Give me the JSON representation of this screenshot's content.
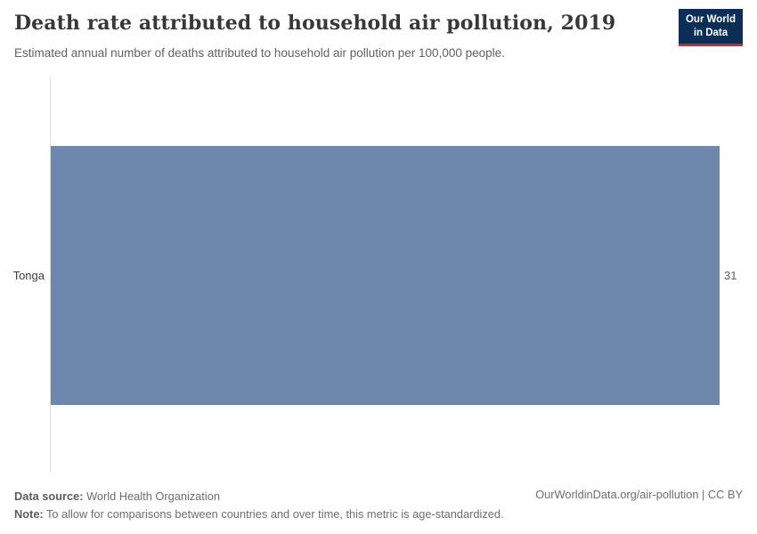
{
  "header": {
    "title": "Death rate attributed to household air pollution, 2019",
    "subtitle": "Estimated annual number of deaths attributed to household air pollution per 100,000 people.",
    "logo": {
      "line1": "Our World",
      "line2": "in Data",
      "bg_color": "#0a2e55",
      "accent_color": "#cc2a25"
    }
  },
  "chart_data": {
    "type": "bar",
    "orientation": "horizontal",
    "title": "Death rate attributed to household air pollution, 2019",
    "subtitle": "Estimated annual number of deaths attributed to household air pollution per 100,000 people.",
    "categories": [
      "Tonga"
    ],
    "values": [
      31
    ],
    "value_labels": [
      "31"
    ],
    "xlim": [
      0,
      31
    ],
    "bar_color": "#6d87ad",
    "axis_line_color": "#dcdcdc",
    "grid": false,
    "legend": false
  },
  "footer": {
    "data_source_label": "Data source:",
    "data_source_value": " World Health Organization",
    "note_label": "Note:",
    "note_value": " To allow for comparisons between countries and over time, this metric is age-standardized.",
    "attribution": "OurWorldinData.org/air-pollution | CC BY"
  }
}
